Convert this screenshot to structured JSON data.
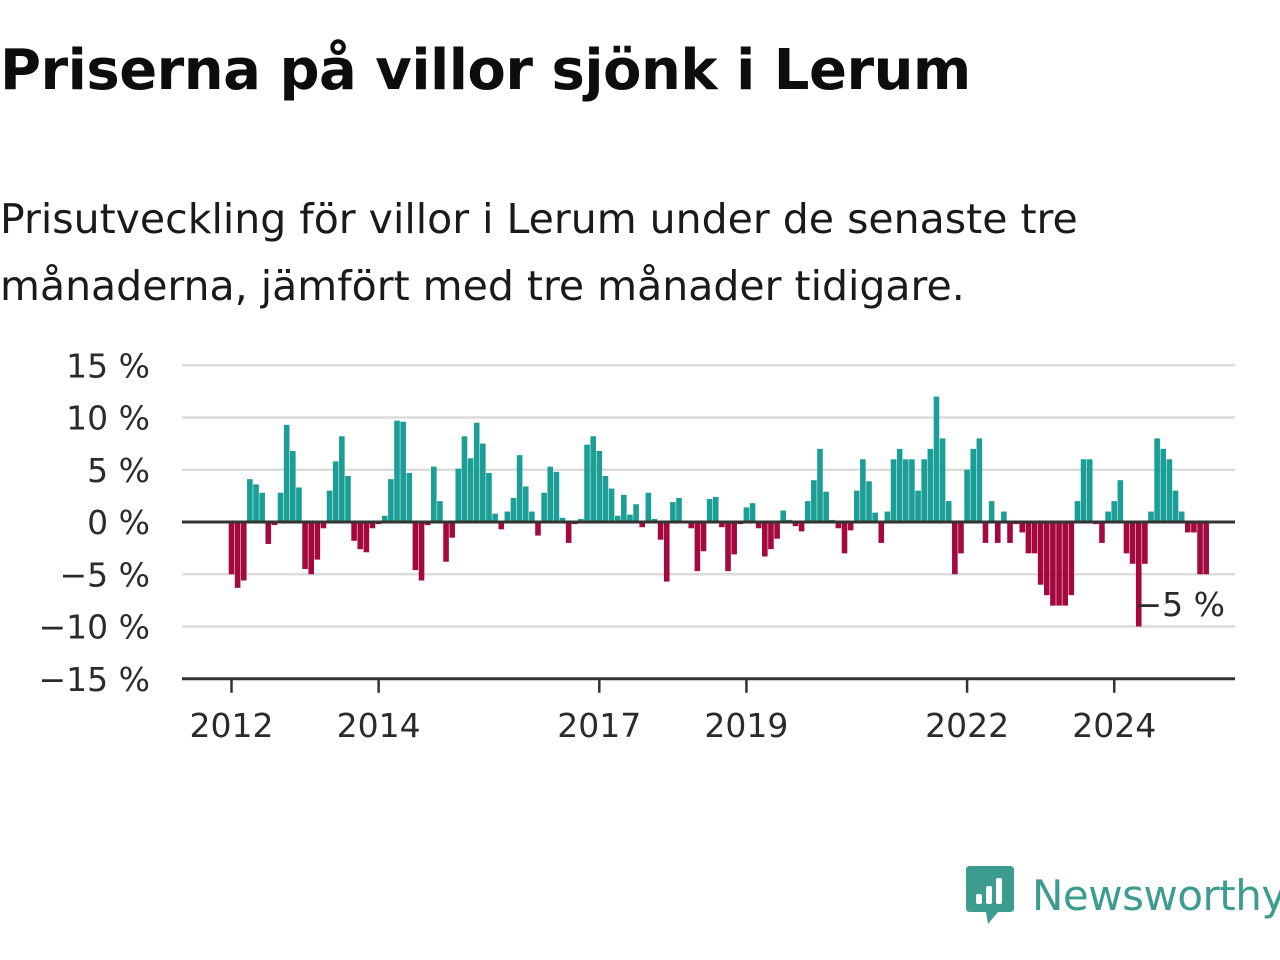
{
  "title": "Priserna på villor sjönk i Lerum",
  "subtitle": "Prisutveckling för villor i Lerum under de senaste tre månaderna, jämfört med tre månader tidigare.",
  "colors": {
    "positive": "#1a9e95",
    "negative": "#a3093e",
    "grid": "#dcdcdc",
    "axis": "#333333",
    "brand": "#3d9c90"
  },
  "chart_data": {
    "type": "bar",
    "y_unit": "%",
    "ylim": [
      -15,
      15
    ],
    "yticks": [
      15,
      10,
      5,
      0,
      -5,
      -10,
      -15
    ],
    "ytick_labels": [
      "15 %",
      "10 %",
      "5 %",
      "0 %",
      "−5 %",
      "−10 %",
      "−15 %"
    ],
    "x_start": "2012-01",
    "xtick_labels": [
      {
        "label": "2012",
        "month": "2012-01"
      },
      {
        "label": "2014",
        "month": "2014-01"
      },
      {
        "label": "2017",
        "month": "2017-01"
      },
      {
        "label": "2019",
        "month": "2019-01"
      },
      {
        "label": "2022",
        "month": "2022-01"
      },
      {
        "label": "2024",
        "month": "2024-01"
      }
    ],
    "values": [
      -5,
      -6.3,
      -5.6,
      4.1,
      3.6,
      2.8,
      -2.1,
      -0.3,
      2.8,
      9.3,
      6.8,
      3.3,
      -4.5,
      -5,
      -3.6,
      -0.6,
      3,
      5.8,
      8.2,
      4.4,
      -1.8,
      -2.6,
      -2.9,
      -0.6,
      -0.2,
      0.6,
      4.1,
      9.7,
      9.6,
      4.7,
      -4.6,
      -5.6,
      -0.3,
      5.3,
      2,
      -3.8,
      -1.5,
      5.1,
      8.2,
      6.1,
      9.5,
      7.5,
      4.7,
      0.8,
      -0.7,
      1,
      2.3,
      6.4,
      3.4,
      1,
      -1.3,
      2.8,
      5.3,
      4.8,
      0.4,
      -2,
      -0.2,
      0.3,
      7.4,
      8.2,
      6.8,
      4.4,
      3.2,
      0.6,
      2.6,
      0.7,
      1.7,
      -0.5,
      2.8,
      0.3,
      -1.7,
      -5.7,
      1.9,
      2.3,
      0.1,
      -0.6,
      -4.7,
      -2.8,
      2.2,
      2.4,
      -0.5,
      -4.7,
      -3.1,
      -0.2,
      1.4,
      1.8,
      -0.6,
      -3.3,
      -2.6,
      -1.6,
      1.1,
      0.2,
      -0.4,
      -0.9,
      2,
      4,
      7,
      2.9,
      0.2,
      -0.6,
      -3,
      -0.8,
      3,
      6,
      3.9,
      0.9,
      -2,
      1,
      6,
      7,
      6,
      6,
      3,
      6,
      7,
      12,
      8,
      2,
      -5,
      -3,
      5,
      7,
      8,
      -2,
      2,
      -2,
      1,
      -2,
      -0.2,
      -1,
      -3,
      -3,
      -6,
      -7,
      -8,
      -8,
      -8,
      -7,
      2,
      6,
      6,
      -0.2,
      -2,
      1,
      2,
      4,
      -3,
      -4,
      -10,
      -4,
      1,
      8,
      7,
      6,
      3,
      1,
      -1,
      -1,
      -5,
      -5
    ],
    "annotation": {
      "text": "−5 %",
      "value": -5
    }
  }
}
